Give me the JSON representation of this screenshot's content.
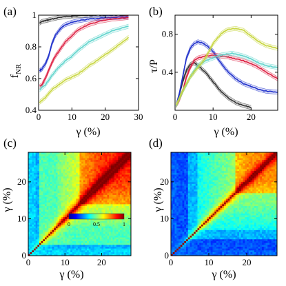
{
  "chart_data": [
    {
      "panel_label": "(a)",
      "type": "line",
      "xlabel": "γ (%)",
      "ylabel_main": "f",
      "ylabel_sub": "NR",
      "xlim": [
        0,
        30
      ],
      "ylim": [
        0.4,
        1.0
      ],
      "xticks": [
        0,
        10,
        20,
        30
      ],
      "yticks": [
        0.4,
        0.6,
        0.8,
        1
      ],
      "ytick_labels": [
        "0.4",
        "0.6",
        "0.8",
        "1"
      ],
      "series": [
        {
          "color": "#333333",
          "x": [
            0.3,
            1,
            2,
            3,
            4,
            6,
            8,
            10,
            14,
            18,
            22,
            27
          ],
          "y": [
            0.95,
            0.96,
            0.965,
            0.97,
            0.975,
            0.985,
            0.99,
            0.995,
            0.998,
            1.0,
            1.0,
            1.0
          ]
        },
        {
          "color": "#2233cc",
          "x": [
            0.3,
            1,
            2,
            3,
            4,
            5,
            6,
            7,
            8,
            10,
            12,
            15,
            18,
            22,
            27
          ],
          "y": [
            0.65,
            0.66,
            0.69,
            0.74,
            0.82,
            0.87,
            0.9,
            0.925,
            0.94,
            0.955,
            0.965,
            0.975,
            0.98,
            0.985,
            0.99
          ]
        },
        {
          "color": "#dd2244",
          "x": [
            0.3,
            1,
            2,
            3,
            4,
            5,
            6,
            8,
            10,
            12,
            15,
            18,
            22,
            27
          ],
          "y": [
            0.55,
            0.56,
            0.6,
            0.65,
            0.7,
            0.74,
            0.77,
            0.83,
            0.87,
            0.91,
            0.94,
            0.96,
            0.975,
            0.985
          ]
        },
        {
          "color": "#5fd4cc",
          "x": [
            0.3,
            2,
            4,
            6,
            8,
            10,
            12,
            15,
            18,
            22,
            27
          ],
          "y": [
            0.53,
            0.56,
            0.62,
            0.67,
            0.71,
            0.74,
            0.78,
            0.83,
            0.86,
            0.9,
            0.93
          ]
        },
        {
          "color": "#c8d640",
          "x": [
            0.3,
            2,
            4,
            6,
            8,
            10,
            12,
            15,
            18,
            22,
            27
          ],
          "y": [
            0.45,
            0.48,
            0.53,
            0.56,
            0.59,
            0.61,
            0.63,
            0.68,
            0.72,
            0.78,
            0.86
          ]
        }
      ]
    },
    {
      "panel_label": "(b)",
      "type": "line",
      "xlabel": "γ (%)",
      "ylabel": "τ/P",
      "xlim": [
        0,
        27
      ],
      "ylim": [
        0,
        1.0
      ],
      "xticks": [
        0,
        10,
        20
      ],
      "yticks": [
        0.4,
        0.8
      ],
      "ytick_labels": [
        "0.4",
        "0.8"
      ],
      "series": [
        {
          "color": "#333333",
          "x": [
            0.3,
            1,
            2,
            3,
            4,
            5,
            6,
            8,
            10,
            12,
            14,
            16,
            18,
            20
          ],
          "y": [
            0.05,
            0.15,
            0.3,
            0.42,
            0.48,
            0.5,
            0.47,
            0.4,
            0.3,
            0.2,
            0.13,
            0.08,
            0.05,
            0.03
          ]
        },
        {
          "color": "#2233cc",
          "x": [
            0.3,
            1,
            2,
            3,
            4,
            5,
            6,
            7,
            8,
            10,
            12,
            14,
            16,
            18,
            20,
            22,
            24,
            27
          ],
          "y": [
            0.05,
            0.15,
            0.35,
            0.55,
            0.65,
            0.7,
            0.72,
            0.71,
            0.69,
            0.62,
            0.5,
            0.4,
            0.33,
            0.28,
            0.25,
            0.22,
            0.2,
            0.19
          ]
        },
        {
          "color": "#dd2244",
          "x": [
            0.3,
            1,
            2,
            3,
            4,
            5,
            6,
            8,
            10,
            12,
            14,
            16,
            18,
            20,
            22,
            24,
            27
          ],
          "y": [
            0.05,
            0.1,
            0.2,
            0.35,
            0.45,
            0.52,
            0.55,
            0.57,
            0.58,
            0.57,
            0.56,
            0.54,
            0.52,
            0.49,
            0.45,
            0.4,
            0.33
          ]
        },
        {
          "color": "#5fd4cc",
          "x": [
            0.3,
            2,
            4,
            6,
            8,
            10,
            12,
            15,
            18,
            20,
            22,
            24,
            27
          ],
          "y": [
            0.05,
            0.2,
            0.35,
            0.47,
            0.52,
            0.55,
            0.58,
            0.6,
            0.57,
            0.54,
            0.5,
            0.47,
            0.45
          ]
        },
        {
          "color": "#c8d640",
          "x": [
            0.3,
            2,
            4,
            6,
            8,
            10,
            12,
            13,
            14,
            16,
            18,
            20,
            22,
            24,
            27
          ],
          "y": [
            0.05,
            0.2,
            0.35,
            0.45,
            0.55,
            0.7,
            0.8,
            0.83,
            0.85,
            0.86,
            0.84,
            0.78,
            0.72,
            0.68,
            0.65
          ]
        }
      ]
    },
    {
      "panel_label": "(c)",
      "type": "heatmap",
      "xlabel": "γ (%)",
      "ylabel": "γ (%)",
      "xlim": [
        0,
        28
      ],
      "ylim": [
        0,
        28
      ],
      "xticks": [
        0,
        10,
        20
      ],
      "yticks": [
        0,
        10,
        20
      ],
      "colorbar": {
        "ticks": [
          0,
          0.5,
          1
        ],
        "tick_labels": [
          "0",
          "0.5",
          "1"
        ],
        "range": [
          0,
          1
        ],
        "placement": "inside-center-right"
      }
    },
    {
      "panel_label": "(d)",
      "type": "heatmap",
      "xlabel": "γ (%)",
      "ylabel": "γ (%)",
      "xlim": [
        0,
        28
      ],
      "ylim": [
        0,
        28
      ],
      "xticks": [
        0,
        10,
        20
      ],
      "yticks": [
        0,
        10,
        20
      ]
    }
  ]
}
